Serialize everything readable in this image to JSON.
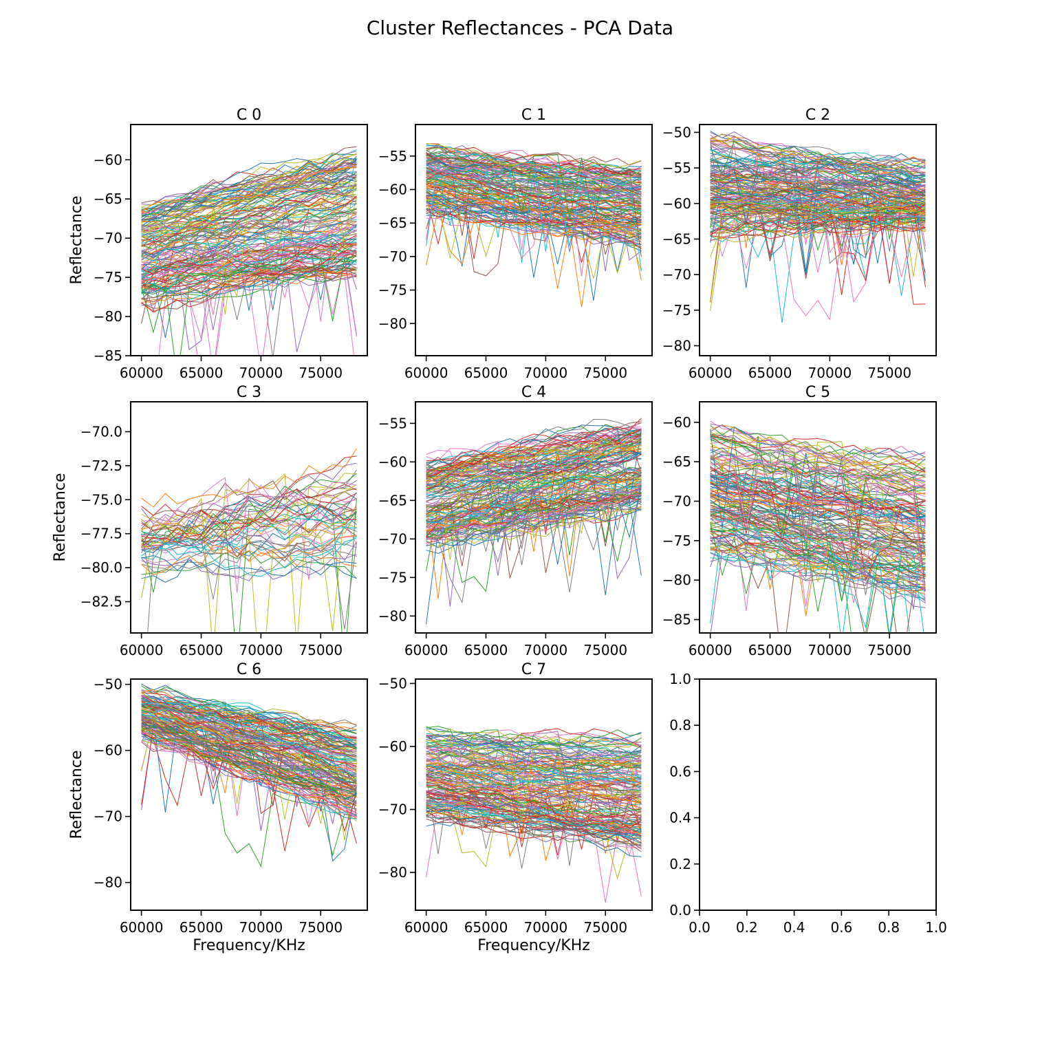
{
  "suptitle": "Cluster Reflectances - PCA Data",
  "colors": [
    "#1f77b4",
    "#ff7f0e",
    "#2ca02c",
    "#d62728",
    "#9467bd",
    "#8c564b",
    "#e377c2",
    "#7f7f7f",
    "#bcbd22",
    "#17becf"
  ],
  "chart_data": [
    {
      "type": "line",
      "title": "C 0",
      "xlabel": "",
      "ylabel": "Reflectance",
      "x_range": [
        60000,
        78000
      ],
      "xlim": [
        59100,
        78900
      ],
      "ylim": [
        -85,
        -55.5
      ],
      "xticks": [
        60000,
        65000,
        70000,
        75000
      ],
      "yticks": [
        -85,
        -80,
        -75,
        -70,
        -65,
        -60
      ],
      "band": {
        "start_lower": -78,
        "start_upper": -66,
        "end_lower": -75,
        "end_upper": -59
      },
      "series_count": 160,
      "grid": false,
      "legend": "none"
    },
    {
      "type": "line",
      "title": "C 1",
      "xlabel": "",
      "ylabel": "",
      "x_range": [
        60000,
        78000
      ],
      "xlim": [
        59100,
        78900
      ],
      "ylim": [
        -84.8,
        -50.3
      ],
      "xticks": [
        60000,
        65000,
        70000,
        75000
      ],
      "yticks": [
        -80,
        -75,
        -70,
        -65,
        -60,
        -55
      ],
      "band": {
        "start_lower": -63,
        "start_upper": -54,
        "end_lower": -68,
        "end_upper": -57
      },
      "series_count": 160,
      "grid": false,
      "legend": "none"
    },
    {
      "type": "line",
      "title": "C 2",
      "xlabel": "",
      "ylabel": "",
      "x_range": [
        60000,
        78000
      ],
      "xlim": [
        59100,
        78900
      ],
      "ylim": [
        -81.4,
        -48.9
      ],
      "xticks": [
        60000,
        65000,
        70000,
        75000
      ],
      "yticks": [
        -80,
        -75,
        -70,
        -65,
        -60,
        -55,
        -50
      ],
      "band": {
        "start_lower": -64,
        "start_upper": -51,
        "end_lower": -63,
        "end_upper": -55
      },
      "series_count": 160,
      "grid": false,
      "legend": "none"
    },
    {
      "type": "line",
      "title": "C 3",
      "xlabel": "",
      "ylabel": "Reflectance",
      "x_range": [
        60000,
        78000
      ],
      "xlim": [
        59100,
        78900
      ],
      "ylim": [
        -84.8,
        -67.8
      ],
      "xticks": [
        60000,
        65000,
        70000,
        75000
      ],
      "yticks": [
        -82.5,
        -80.0,
        -77.5,
        -75.0,
        -72.5,
        -70.0
      ],
      "band": {
        "start_lower": -80,
        "start_upper": -76,
        "end_lower": -80,
        "end_upper": -72
      },
      "series_count": 50,
      "grid": false,
      "legend": "none"
    },
    {
      "type": "line",
      "title": "C 4",
      "xlabel": "",
      "ylabel": "",
      "x_range": [
        60000,
        78000
      ],
      "xlim": [
        59100,
        78900
      ],
      "ylim": [
        -82.2,
        -52.2
      ],
      "xticks": [
        60000,
        65000,
        70000,
        75000
      ],
      "yticks": [
        -80,
        -75,
        -70,
        -65,
        -60,
        -55
      ],
      "band": {
        "start_lower": -71,
        "start_upper": -60,
        "end_lower": -66,
        "end_upper": -55
      },
      "series_count": 160,
      "grid": false,
      "legend": "none"
    },
    {
      "type": "line",
      "title": "C 5",
      "xlabel": "",
      "ylabel": "",
      "x_range": [
        60000,
        78000
      ],
      "xlim": [
        59100,
        78900
      ],
      "ylim": [
        -86.7,
        -57.4
      ],
      "xticks": [
        60000,
        65000,
        70000,
        75000
      ],
      "yticks": [
        -85,
        -80,
        -75,
        -70,
        -65,
        -60
      ],
      "band": {
        "start_lower": -76,
        "start_upper": -61,
        "end_lower": -82,
        "end_upper": -65
      },
      "series_count": 160,
      "grid": false,
      "legend": "none"
    },
    {
      "type": "line",
      "title": "C 6",
      "xlabel": "Frequency/KHz",
      "ylabel": "Reflectance",
      "x_range": [
        60000,
        78000
      ],
      "xlim": [
        59100,
        78900
      ],
      "ylim": [
        -84.2,
        -49.2
      ],
      "xticks": [
        60000,
        65000,
        70000,
        75000
      ],
      "yticks": [
        -80,
        -70,
        -60,
        -50
      ],
      "band": {
        "start_lower": -58,
        "start_upper": -51,
        "end_lower": -70,
        "end_upper": -57
      },
      "series_count": 160,
      "grid": false,
      "legend": "none"
    },
    {
      "type": "line",
      "title": "C 7",
      "xlabel": "Frequency/KHz",
      "ylabel": "",
      "x_range": [
        60000,
        78000
      ],
      "xlim": [
        59100,
        78900
      ],
      "ylim": [
        -86.0,
        -49.3
      ],
      "xticks": [
        60000,
        65000,
        70000,
        75000
      ],
      "yticks": [
        -80,
        -70,
        -60,
        -50
      ],
      "band": {
        "start_lower": -71,
        "start_upper": -58,
        "end_lower": -76,
        "end_upper": -59
      },
      "series_count": 160,
      "grid": false,
      "legend": "none"
    },
    {
      "type": "line",
      "title": "",
      "xlabel": "",
      "ylabel": "",
      "xlim": [
        0.0,
        1.0
      ],
      "ylim": [
        0.0,
        1.0
      ],
      "xticks": [
        0.0,
        0.2,
        0.4,
        0.6,
        0.8,
        1.0
      ],
      "yticks": [
        0.0,
        0.2,
        0.4,
        0.6,
        0.8,
        1.0
      ],
      "series_count": 0,
      "grid": false,
      "legend": "none"
    }
  ]
}
